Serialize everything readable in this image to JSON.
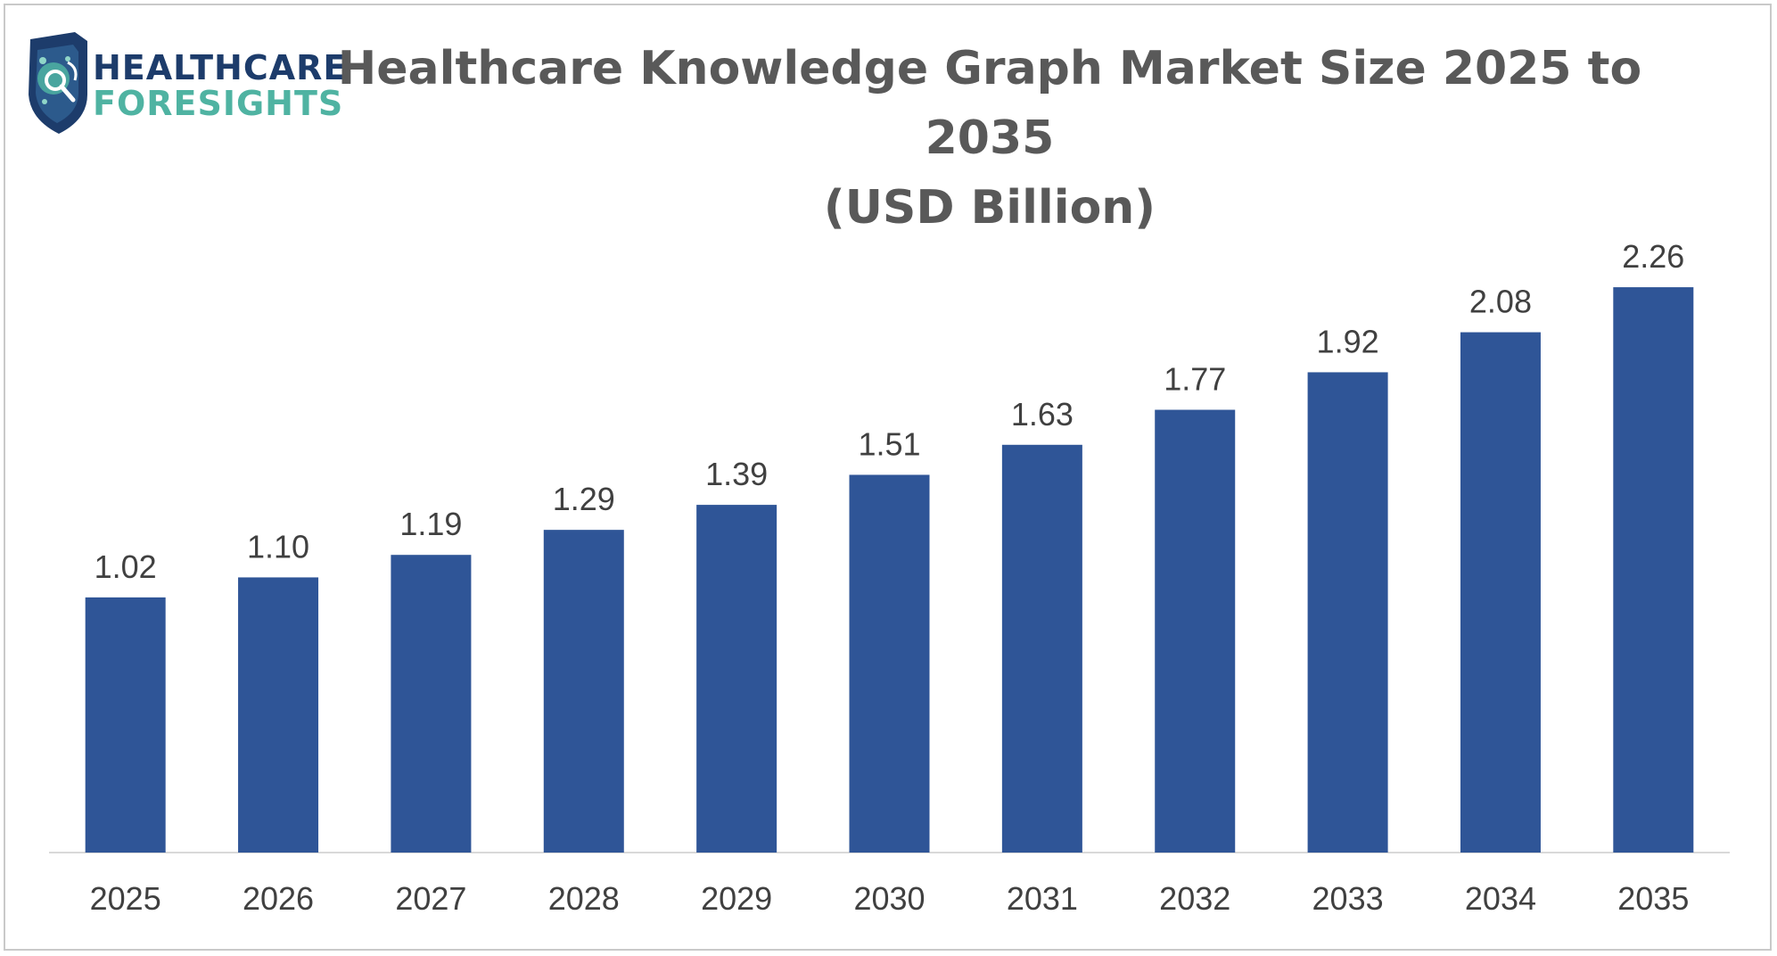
{
  "brand": {
    "line1": "HEALTHCARE",
    "line2": "FORESIGHTS",
    "primary_color": "#1d3c6b",
    "accent_color": "#4fb3a2"
  },
  "chart_data": {
    "type": "bar",
    "title": "Healthcare Knowledge Graph Market  Size 2025 to 2035",
    "subtitle": "(USD Billion)",
    "categories": [
      "2025",
      "2026",
      "2027",
      "2028",
      "2029",
      "2030",
      "2031",
      "2032",
      "2033",
      "2034",
      "2035"
    ],
    "values": [
      1.02,
      1.1,
      1.19,
      1.29,
      1.39,
      1.51,
      1.63,
      1.77,
      1.92,
      2.08,
      2.26
    ],
    "value_labels": [
      "1.02",
      "1.10",
      "1.19",
      "1.29",
      "1.39",
      "1.51",
      "1.63",
      "1.77",
      "1.92",
      "2.08",
      "2.26"
    ],
    "xlabel": "",
    "ylabel": "",
    "ylim": [
      0,
      2.4
    ],
    "bar_color": "#2f5597",
    "grid": false,
    "legend": "none"
  }
}
